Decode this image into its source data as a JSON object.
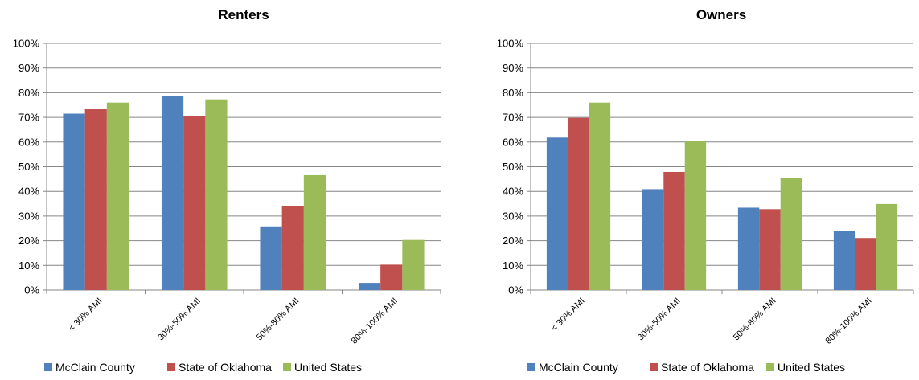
{
  "colors": {
    "mcclain": "#4F81BD",
    "oklahoma": "#C0504D",
    "united_states": "#9BBB59"
  },
  "chart_data": [
    {
      "type": "bar",
      "title": "Renters",
      "categories": [
        "< 30% AMI",
        "30%-50% AMI",
        "50%-80% AMI",
        "80%-100% AMI"
      ],
      "series": [
        {
          "name": "McClain County",
          "values": [
            71.5,
            78.5,
            25.8,
            2.9
          ]
        },
        {
          "name": "State of Oklahoma",
          "values": [
            73.3,
            70.6,
            34.2,
            10.3
          ]
        },
        {
          "name": "United States",
          "values": [
            76.0,
            77.3,
            46.6,
            20.3
          ]
        }
      ],
      "ylim": [
        0,
        100
      ],
      "yticks": [
        "0%",
        "10%",
        "20%",
        "30%",
        "40%",
        "50%",
        "60%",
        "70%",
        "80%",
        "90%",
        "100%"
      ],
      "grid": true,
      "legend": "bottom"
    },
    {
      "type": "bar",
      "title": "Owners",
      "categories": [
        "< 30% AMI",
        "30%-50% AMI",
        "50%-80% AMI",
        "80%-100% AMI"
      ],
      "series": [
        {
          "name": "McClain County",
          "values": [
            61.8,
            40.9,
            33.4,
            24.0
          ]
        },
        {
          "name": "State of Oklahoma",
          "values": [
            69.8,
            47.9,
            32.8,
            21.1
          ]
        },
        {
          "name": "United States",
          "values": [
            76.0,
            60.3,
            45.6,
            34.9
          ]
        }
      ],
      "ylim": [
        0,
        100
      ],
      "yticks": [
        "0%",
        "10%",
        "20%",
        "30%",
        "40%",
        "50%",
        "60%",
        "70%",
        "80%",
        "90%",
        "100%"
      ],
      "grid": true,
      "legend": "bottom"
    }
  ]
}
